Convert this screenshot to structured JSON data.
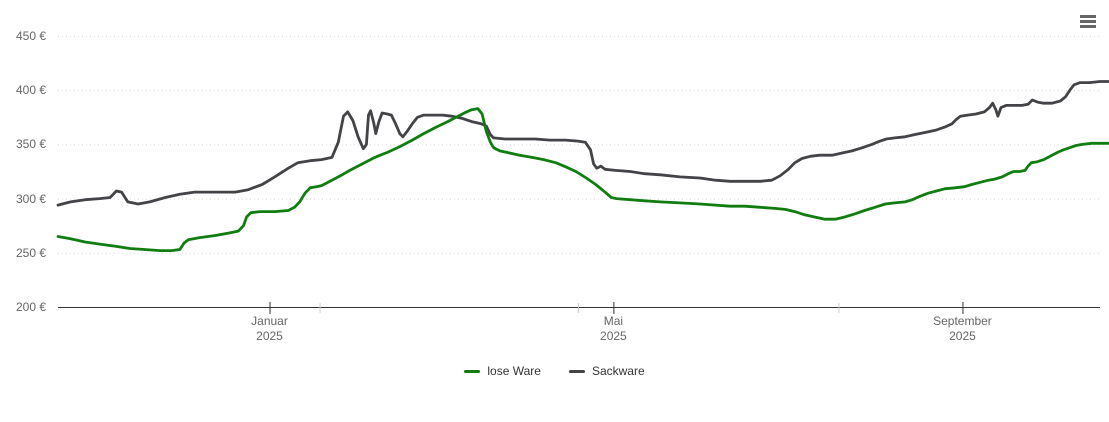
{
  "chart_data": {
    "type": "line",
    "title": "",
    "y_axis": {
      "min": 200,
      "max": 450,
      "tick_interval": 50,
      "ticks": [
        {
          "value": 200,
          "label": "200 €"
        },
        {
          "value": 250,
          "label": "250 €"
        },
        {
          "value": 300,
          "label": "300 €"
        },
        {
          "value": 350,
          "label": "350 €"
        },
        {
          "value": 400,
          "label": "400 €"
        },
        {
          "value": 450,
          "label": "450 €"
        }
      ]
    },
    "x_axis": {
      "labels": [
        {
          "pos": 20.3,
          "lines": [
            "Januar",
            "2025"
          ]
        },
        {
          "pos": 53.3,
          "lines": [
            "Mai",
            "2025"
          ]
        },
        {
          "pos": 86.8,
          "lines": [
            "September",
            "2025"
          ]
        }
      ],
      "minor_tick_pos": [
        25.1,
        49.9,
        74.9
      ]
    },
    "legend_position": "bottom-center",
    "grid": "dotted",
    "colors": {
      "grid": "#d9d9d9",
      "axis_line": "#333333",
      "minor_tick": "#cccccc",
      "axis_label": "#666666",
      "legend_label": "#333333",
      "menu_icon": "#666666"
    },
    "series": [
      {
        "name": "lose Ware",
        "color": "#117d11",
        "points": [
          [
            0.0,
            265
          ],
          [
            1.2,
            263
          ],
          [
            2.6,
            260
          ],
          [
            4.0,
            258
          ],
          [
            5.5,
            256
          ],
          [
            6.9,
            254
          ],
          [
            8.3,
            253
          ],
          [
            9.8,
            252
          ],
          [
            10.9,
            252
          ],
          [
            11.7,
            253
          ],
          [
            12.1,
            259
          ],
          [
            12.5,
            262
          ],
          [
            13.6,
            264
          ],
          [
            15.1,
            266
          ],
          [
            16.3,
            268
          ],
          [
            17.3,
            270
          ],
          [
            17.8,
            275
          ],
          [
            18.1,
            283
          ],
          [
            18.5,
            287
          ],
          [
            19.4,
            288
          ],
          [
            20.8,
            288
          ],
          [
            22.1,
            289
          ],
          [
            22.7,
            292
          ],
          [
            23.2,
            297
          ],
          [
            23.7,
            305
          ],
          [
            24.2,
            310
          ],
          [
            24.8,
            311
          ],
          [
            25.3,
            312
          ],
          [
            26.1,
            316
          ],
          [
            27.1,
            321
          ],
          [
            28.0,
            326
          ],
          [
            29.2,
            332
          ],
          [
            30.4,
            338
          ],
          [
            31.7,
            343
          ],
          [
            32.8,
            348
          ],
          [
            34.0,
            354
          ],
          [
            35.1,
            360
          ],
          [
            36.3,
            366
          ],
          [
            37.4,
            371
          ],
          [
            38.4,
            376
          ],
          [
            39.2,
            380
          ],
          [
            39.7,
            382
          ],
          [
            40.3,
            383
          ],
          [
            40.7,
            378
          ],
          [
            41.1,
            362
          ],
          [
            41.5,
            352
          ],
          [
            41.8,
            347
          ],
          [
            42.4,
            344
          ],
          [
            43.4,
            342
          ],
          [
            44.3,
            340
          ],
          [
            45.5,
            338
          ],
          [
            46.6,
            336
          ],
          [
            47.8,
            333
          ],
          [
            48.8,
            329
          ],
          [
            49.7,
            325
          ],
          [
            50.7,
            319
          ],
          [
            51.6,
            313
          ],
          [
            52.5,
            306
          ],
          [
            53.1,
            301
          ],
          [
            53.6,
            300
          ],
          [
            54.9,
            299
          ],
          [
            56.3,
            298
          ],
          [
            57.8,
            297
          ],
          [
            59.7,
            296
          ],
          [
            61.6,
            295
          ],
          [
            63.1,
            294
          ],
          [
            64.5,
            293
          ],
          [
            65.9,
            293
          ],
          [
            67.4,
            292
          ],
          [
            68.8,
            291
          ],
          [
            69.8,
            290
          ],
          [
            70.7,
            288
          ],
          [
            71.7,
            285
          ],
          [
            72.6,
            283
          ],
          [
            73.6,
            281
          ],
          [
            74.6,
            281
          ],
          [
            75.5,
            283
          ],
          [
            76.5,
            286
          ],
          [
            77.4,
            289
          ],
          [
            78.4,
            292
          ],
          [
            79.4,
            295
          ],
          [
            80.3,
            296
          ],
          [
            81.3,
            297
          ],
          [
            82.0,
            299
          ],
          [
            82.7,
            302
          ],
          [
            83.5,
            305
          ],
          [
            84.3,
            307
          ],
          [
            85.1,
            309
          ],
          [
            86.1,
            310
          ],
          [
            87.0,
            311
          ],
          [
            87.7,
            313
          ],
          [
            88.5,
            315
          ],
          [
            89.3,
            317
          ],
          [
            89.9,
            318
          ],
          [
            90.6,
            320
          ],
          [
            91.2,
            323
          ],
          [
            91.7,
            325
          ],
          [
            92.3,
            325
          ],
          [
            92.8,
            326
          ],
          [
            93.1,
            330
          ],
          [
            93.4,
            333
          ],
          [
            94.0,
            334
          ],
          [
            94.6,
            336
          ],
          [
            95.4,
            340
          ],
          [
            96.0,
            343
          ],
          [
            96.5,
            345
          ],
          [
            97.1,
            347
          ],
          [
            97.7,
            349
          ],
          [
            98.3,
            350
          ],
          [
            99.2,
            351
          ],
          [
            100.2,
            351
          ],
          [
            100.8,
            351
          ]
        ]
      },
      {
        "name": "Sackware",
        "color": "#434348",
        "points": [
          [
            0.0,
            294
          ],
          [
            1.2,
            297
          ],
          [
            2.6,
            299
          ],
          [
            4.0,
            300
          ],
          [
            5.0,
            301
          ],
          [
            5.6,
            307
          ],
          [
            6.1,
            306
          ],
          [
            6.7,
            297
          ],
          [
            7.7,
            295
          ],
          [
            8.8,
            297
          ],
          [
            10.3,
            301
          ],
          [
            11.7,
            304
          ],
          [
            13.1,
            306
          ],
          [
            15.1,
            306
          ],
          [
            17.0,
            306
          ],
          [
            18.2,
            308
          ],
          [
            19.6,
            313
          ],
          [
            20.8,
            320
          ],
          [
            22.1,
            328
          ],
          [
            23.0,
            333
          ],
          [
            24.2,
            335
          ],
          [
            25.3,
            336
          ],
          [
            26.3,
            338
          ],
          [
            26.9,
            352
          ],
          [
            27.4,
            376
          ],
          [
            27.8,
            380
          ],
          [
            28.3,
            372
          ],
          [
            28.8,
            357
          ],
          [
            29.3,
            346
          ],
          [
            29.6,
            350
          ],
          [
            29.8,
            377
          ],
          [
            30.0,
            381
          ],
          [
            30.3,
            370
          ],
          [
            30.5,
            360
          ],
          [
            30.8,
            371
          ],
          [
            31.1,
            379
          ],
          [
            31.6,
            378
          ],
          [
            32.0,
            377
          ],
          [
            32.4,
            369
          ],
          [
            32.8,
            360
          ],
          [
            33.1,
            357
          ],
          [
            33.5,
            362
          ],
          [
            34.0,
            369
          ],
          [
            34.5,
            375
          ],
          [
            35.1,
            377
          ],
          [
            36.0,
            377
          ],
          [
            36.9,
            377
          ],
          [
            37.8,
            376
          ],
          [
            38.8,
            374
          ],
          [
            39.7,
            371
          ],
          [
            40.6,
            369
          ],
          [
            41.1,
            367
          ],
          [
            41.5,
            359
          ],
          [
            41.8,
            356
          ],
          [
            42.9,
            355
          ],
          [
            44.3,
            355
          ],
          [
            45.8,
            355
          ],
          [
            47.2,
            354
          ],
          [
            48.7,
            354
          ],
          [
            49.9,
            353
          ],
          [
            50.6,
            352
          ],
          [
            51.1,
            345
          ],
          [
            51.4,
            332
          ],
          [
            51.7,
            328
          ],
          [
            52.1,
            330
          ],
          [
            52.5,
            327
          ],
          [
            53.5,
            326
          ],
          [
            54.9,
            325
          ],
          [
            56.3,
            323
          ],
          [
            57.8,
            322
          ],
          [
            59.7,
            320
          ],
          [
            61.6,
            319
          ],
          [
            63.1,
            317
          ],
          [
            64.5,
            316
          ],
          [
            65.9,
            316
          ],
          [
            67.4,
            316
          ],
          [
            68.5,
            317
          ],
          [
            69.3,
            321
          ],
          [
            70.1,
            327
          ],
          [
            70.7,
            333
          ],
          [
            71.4,
            337
          ],
          [
            72.2,
            339
          ],
          [
            73.1,
            340
          ],
          [
            74.3,
            340
          ],
          [
            75.2,
            342
          ],
          [
            76.2,
            344
          ],
          [
            77.2,
            347
          ],
          [
            78.1,
            350
          ],
          [
            78.9,
            353
          ],
          [
            79.5,
            355
          ],
          [
            80.3,
            356
          ],
          [
            81.3,
            357
          ],
          [
            82.2,
            359
          ],
          [
            83.2,
            361
          ],
          [
            84.2,
            363
          ],
          [
            85.1,
            366
          ],
          [
            85.8,
            369
          ],
          [
            86.2,
            373
          ],
          [
            86.6,
            376
          ],
          [
            87.3,
            377
          ],
          [
            88.1,
            378
          ],
          [
            88.9,
            380
          ],
          [
            89.4,
            384
          ],
          [
            89.7,
            388
          ],
          [
            90.0,
            382
          ],
          [
            90.2,
            376
          ],
          [
            90.5,
            384
          ],
          [
            91.0,
            386
          ],
          [
            91.7,
            386
          ],
          [
            92.5,
            386
          ],
          [
            93.1,
            387
          ],
          [
            93.5,
            391
          ],
          [
            94.0,
            389
          ],
          [
            94.6,
            388
          ],
          [
            95.4,
            388
          ],
          [
            96.2,
            390
          ],
          [
            96.7,
            394
          ],
          [
            97.1,
            400
          ],
          [
            97.5,
            405
          ],
          [
            98.1,
            407
          ],
          [
            99.0,
            407
          ],
          [
            100.0,
            408
          ],
          [
            100.8,
            408
          ]
        ]
      }
    ]
  },
  "menu": {
    "icon": "hamburger-icon"
  }
}
